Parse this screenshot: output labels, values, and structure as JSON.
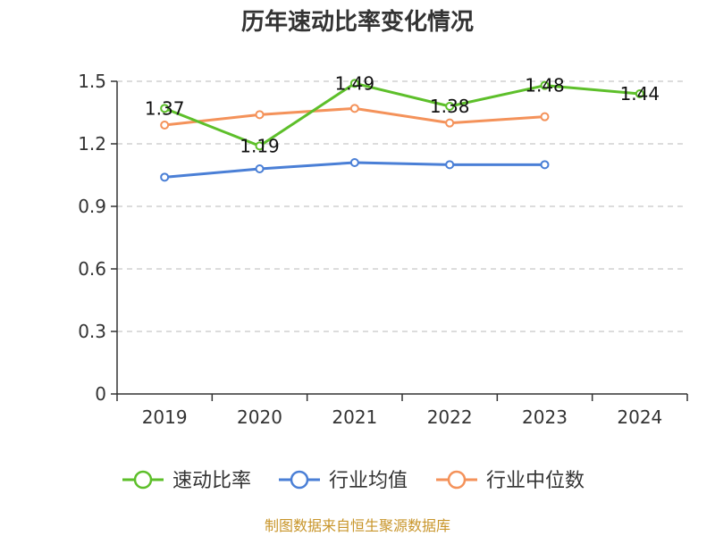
{
  "chart_data": {
    "type": "line",
    "title": "历年速动比率变化情况",
    "categories": [
      "2019",
      "2020",
      "2021",
      "2022",
      "2023",
      "2024"
    ],
    "ylim": [
      0,
      1.5
    ],
    "yticks": [
      "0",
      "0.3",
      "0.6",
      "0.9",
      "1.2",
      "1.5"
    ],
    "grid": true,
    "legend_position": "bottom",
    "series": [
      {
        "name": "速动比率",
        "color": "#5dbf2a",
        "values": [
          1.37,
          1.19,
          1.49,
          1.38,
          1.48,
          1.44
        ],
        "labels": [
          "1.37",
          "1.19",
          "1.49",
          "1.38",
          "1.48",
          "1.44"
        ]
      },
      {
        "name": "行业均值",
        "color": "#4a7fd6",
        "values": [
          1.04,
          1.08,
          1.11,
          1.1,
          1.1,
          null
        ]
      },
      {
        "name": "行业中位数",
        "color": "#f4925a",
        "values": [
          1.29,
          1.34,
          1.37,
          1.3,
          1.33,
          null
        ]
      }
    ],
    "source": "制图数据来自恒生聚源数据库"
  }
}
